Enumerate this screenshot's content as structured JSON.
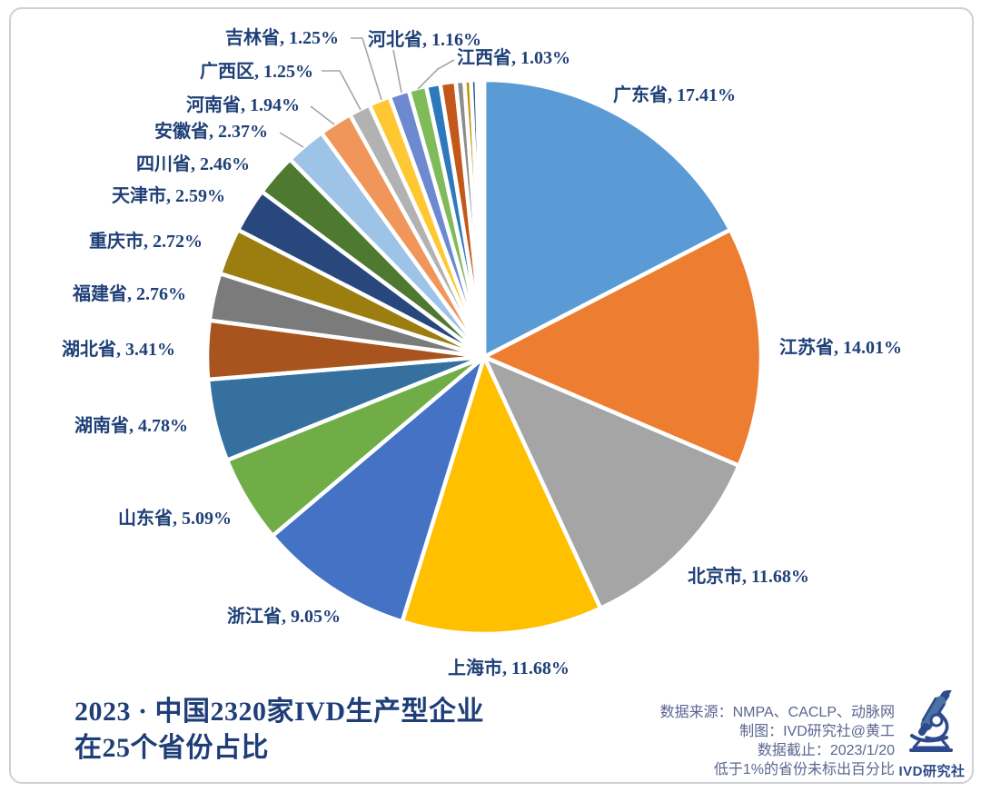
{
  "chart_data": {
    "type": "pie",
    "title": "2023 · 中国2320家IVD生产型企业在25个省份占比",
    "start_angle_deg": 0,
    "direction": "clockwise",
    "label_format": "{name}, {value}%",
    "note": "低于1%的省份未标出百分比",
    "slices": [
      {
        "name": "广东省",
        "value": 17.41,
        "color": "#5B9BD5",
        "labeled": true,
        "label": "广东省, 17.41%"
      },
      {
        "name": "江苏省",
        "value": 14.01,
        "color": "#ED7D31",
        "labeled": true,
        "label": "江苏省, 14.01%"
      },
      {
        "name": "北京市",
        "value": 11.68,
        "color": "#A5A5A5",
        "labeled": true,
        "label": "北京市, 11.68%"
      },
      {
        "name": "上海市",
        "value": 11.68,
        "color": "#FFC000",
        "labeled": true,
        "label": "上海市, 11.68%"
      },
      {
        "name": "浙江省",
        "value": 9.05,
        "color": "#4472C4",
        "labeled": true,
        "label": "浙江省, 9.05%"
      },
      {
        "name": "山东省",
        "value": 5.09,
        "color": "#70AD47",
        "labeled": true,
        "label": "山东省, 5.09%"
      },
      {
        "name": "湖南省",
        "value": 4.78,
        "color": "#35709E",
        "labeled": true,
        "label": "湖南省, 4.78%"
      },
      {
        "name": "湖北省",
        "value": 3.41,
        "color": "#A8541E",
        "labeled": true,
        "label": "湖北省, 3.41%"
      },
      {
        "name": "福建省",
        "value": 2.76,
        "color": "#7B7B7B",
        "labeled": true,
        "label": "福建省, 2.76%"
      },
      {
        "name": "重庆市",
        "value": 2.72,
        "color": "#9C7E10",
        "labeled": true,
        "label": "重庆市, 2.72%"
      },
      {
        "name": "天津市",
        "value": 2.59,
        "color": "#27477D",
        "labeled": true,
        "label": "天津市, 2.59%"
      },
      {
        "name": "四川省",
        "value": 2.46,
        "color": "#4E7931",
        "labeled": true,
        "label": "四川省, 2.46%"
      },
      {
        "name": "安徽省",
        "value": 2.37,
        "color": "#9DC3E6",
        "labeled": true,
        "label": "安徽省, 2.37%"
      },
      {
        "name": "河南省",
        "value": 1.94,
        "color": "#F0965A",
        "labeled": true,
        "label": "河南省, 1.94%"
      },
      {
        "name": "广西区",
        "value": 1.25,
        "color": "#B2B2B2",
        "labeled": true,
        "label": "广西区, 1.25%"
      },
      {
        "name": "吉林省",
        "value": 1.25,
        "color": "#FFC832",
        "labeled": true,
        "label": "吉林省, 1.25%"
      },
      {
        "name": "河北省",
        "value": 1.16,
        "color": "#6D89D0",
        "labeled": true,
        "label": "河北省, 1.16%"
      },
      {
        "name": "江西省",
        "value": 1.03,
        "color": "#7FBB59",
        "labeled": true,
        "label": "江西省, 1.03%"
      },
      {
        "name": "",
        "value": 0.82,
        "color": "#2E79BC",
        "labeled": false,
        "label": ""
      },
      {
        "name": "",
        "value": 0.9,
        "color": "#C4571A",
        "labeled": false,
        "label": ""
      },
      {
        "name": "",
        "value": 0.5,
        "color": "#8C8C8C",
        "labeled": false,
        "label": ""
      },
      {
        "name": "",
        "value": 0.38,
        "color": "#C09100",
        "labeled": false,
        "label": ""
      },
      {
        "name": "",
        "value": 0.33,
        "color": "#2F5597",
        "labeled": false,
        "label": ""
      },
      {
        "name": "",
        "value": 0.23,
        "color": "#56822F",
        "labeled": false,
        "label": ""
      },
      {
        "name": "",
        "value": 0.2,
        "color": "#1F3864",
        "labeled": false,
        "label": ""
      }
    ]
  },
  "title": {
    "line1": "2023 · 中国2320家IVD生产型企业",
    "line2": "在25个省份占比"
  },
  "source": {
    "line1": "数据来源：NMPA、CACLP、动脉网",
    "line2": "制图：IVD研究社@黄工",
    "line3": "数据截止：2023/1/20",
    "line4": "低于1%的省份未标出百分比"
  },
  "logo": {
    "text": "IVD研究社",
    "icon": "microscope-icon"
  },
  "colors": {
    "label_text": "#1F4077",
    "title_text": "#1F3E78",
    "source_text": "#5B6590",
    "leader_line": "#A6A6A6",
    "frame_border": "#CDD1D6",
    "logo_navy": "#2C4A8C",
    "logo_fill": "#5E87B0"
  }
}
